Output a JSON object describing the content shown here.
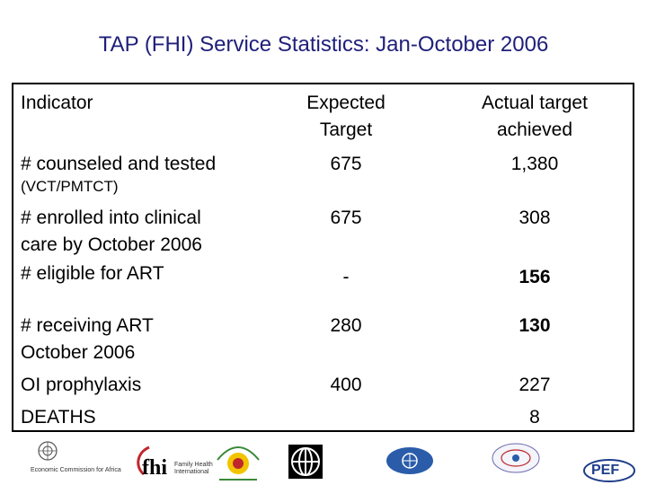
{
  "title": "TAP (FHI) Service Statistics: Jan-October  2006",
  "table": {
    "headers": {
      "indicator": "Indicator",
      "expected": [
        "Expected",
        "Target"
      ],
      "actual": [
        "Actual target",
        "achieved"
      ]
    },
    "rows": [
      {
        "indicator": [
          "# counseled and tested"
        ],
        "sub": "(VCT/PMTCT)",
        "expected": "675",
        "actual": "1,380",
        "actual_bold": false
      },
      {
        "indicator": [
          "# enrolled into clinical",
          "care by October 2006"
        ],
        "expected": "675",
        "actual": "308",
        "actual_bold": false
      },
      {
        "indicator": [
          "# eligible for ART"
        ],
        "expected": "-",
        "actual": "156",
        "actual_bold": true
      },
      {
        "indicator": [
          "# receiving ART",
          "October 2006"
        ],
        "expected": "280",
        "actual": "130",
        "actual_bold": true
      },
      {
        "indicator": [
          "OI prophylaxis"
        ],
        "expected": "400",
        "actual": "227",
        "actual_bold": false
      },
      {
        "indicator": [
          "DEATHS"
        ],
        "expected": "",
        "actual": "8",
        "actual_bold": false
      }
    ]
  },
  "logos": {
    "ecafrica": "Economic Commission for Africa",
    "fhi": "fhi",
    "fhi_sub": [
      "Family Health",
      "International"
    ],
    "pef": "PEF"
  },
  "colors": {
    "title": "#1f1f7a",
    "fhi_red": "#c0272d",
    "un_blue": "#2a5caa",
    "pef_blue": "#1f3d8a"
  }
}
